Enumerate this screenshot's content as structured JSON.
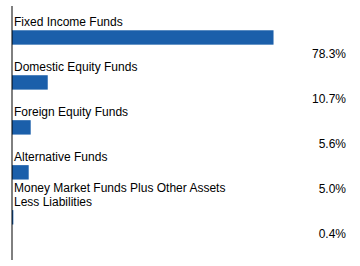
{
  "chart_data": {
    "type": "bar",
    "orientation": "horizontal",
    "categories": [
      "Fixed Income Funds",
      "Domestic Equity Funds",
      "Foreign Equity Funds",
      "Alternative Funds",
      "Money Market Funds Plus Other Assets\nLess Liabilities"
    ],
    "values": [
      78.3,
      10.7,
      5.6,
      5.0,
      0.4
    ],
    "value_labels": [
      "78.3%",
      "10.7%",
      "5.6%",
      "5.0%",
      "0.4%"
    ],
    "color": "#1B5FAA",
    "xlim": [
      0,
      100
    ],
    "data_labels": true,
    "tick_labels": false,
    "grid": false
  }
}
